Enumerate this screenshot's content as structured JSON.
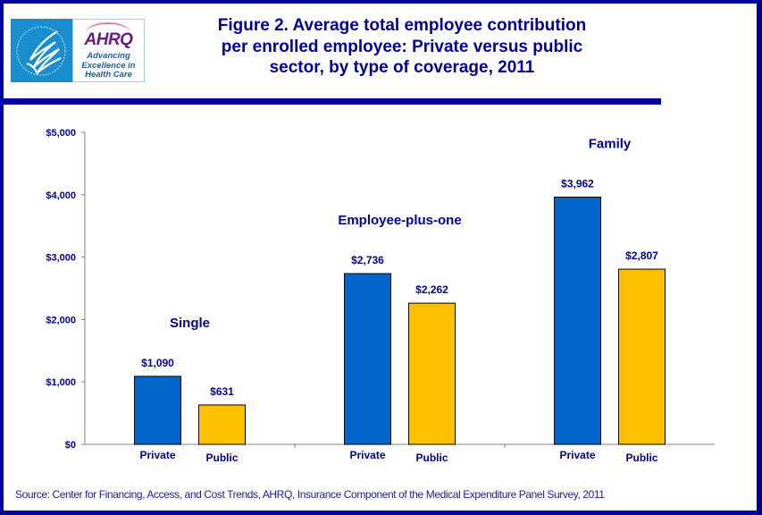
{
  "header": {
    "logo_hhs_label": "Department of Health & Human Services - USA",
    "logo_ahrq_word": "AHRQ",
    "logo_ahrq_tagline": "Advancing Excellence in Health Care",
    "title_lines": [
      "Figure 2. Average total employee contribution",
      "per enrolled employee: Private versus public",
      "sector, by type of coverage, 2011"
    ]
  },
  "colors": {
    "frame": "#0000a0",
    "text": "#0000a0",
    "private": "#0066cc",
    "public": "#ffc000",
    "axis": "#808080"
  },
  "chart_data": {
    "type": "bar",
    "title": "Figure 2. Average total employee contribution per enrolled employee: Private versus public sector, by type of coverage, 2011",
    "xlabel": "",
    "ylabel": "",
    "ylim": [
      0,
      5000
    ],
    "yticks": [
      0,
      1000,
      2000,
      3000,
      4000,
      5000
    ],
    "ytick_labels": [
      "$0",
      "$1,000",
      "$2,000",
      "$3,000",
      "$4,000",
      "$5,000"
    ],
    "grid": false,
    "legend": "none",
    "categories": [
      "Single",
      "Employee-plus-one",
      "Family"
    ],
    "series": [
      {
        "name": "Private",
        "values": [
          1090,
          2736,
          3962
        ],
        "labels": [
          "$1,090",
          "$2,736",
          "$3,962"
        ]
      },
      {
        "name": "Public",
        "values": [
          631,
          2262,
          2807
        ],
        "labels": [
          "$631",
          "$2,262",
          "$2,807"
        ]
      }
    ]
  },
  "footer": {
    "source": "Source: Center for Financing, Access, and Cost Trends, AHRQ, Insurance Component of the Medical Expenditure Panel Survey,  2011"
  }
}
